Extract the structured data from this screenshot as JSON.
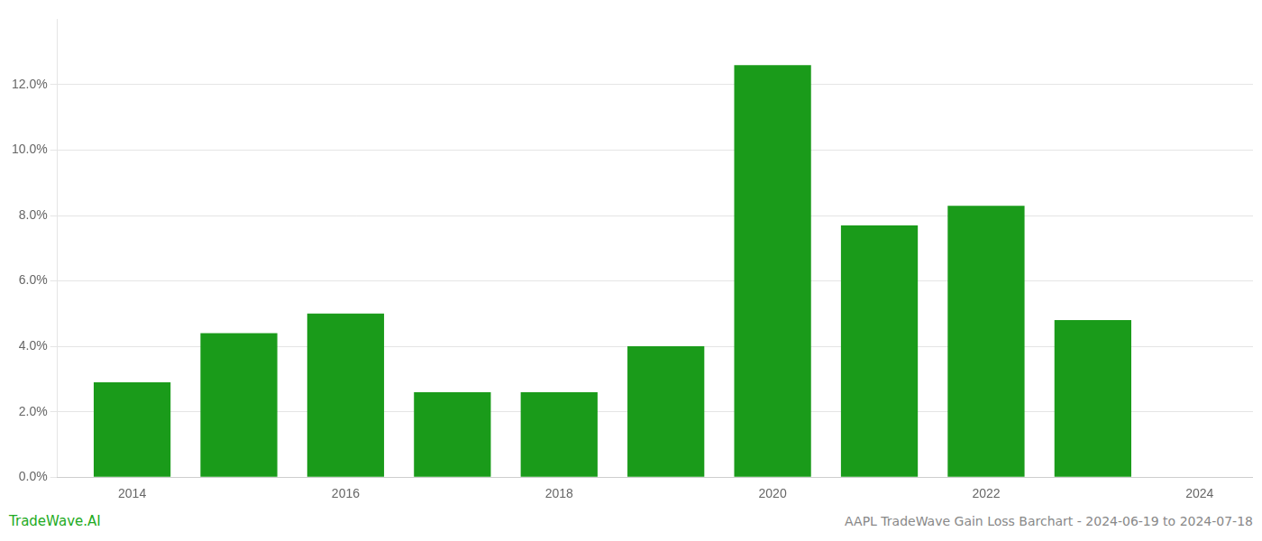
{
  "chart_data": {
    "type": "bar",
    "x": [
      2014,
      2015,
      2016,
      2017,
      2018,
      2019,
      2020,
      2021,
      2022,
      2023
    ],
    "values": [
      0.029,
      0.044,
      0.05,
      0.026,
      0.026,
      0.04,
      0.126,
      0.077,
      0.083,
      0.048
    ],
    "color": "#1a9b1a",
    "xlim": [
      2013.3,
      2024.5
    ],
    "xticks": [
      2014,
      2016,
      2018,
      2020,
      2022,
      2024
    ],
    "ylim": [
      0,
      0.14
    ],
    "yticks": [
      {
        "value": 0.0,
        "label": "0.0%"
      },
      {
        "value": 0.02,
        "label": "2.0%"
      },
      {
        "value": 0.04,
        "label": "4.0%"
      },
      {
        "value": 0.06,
        "label": "6.0%"
      },
      {
        "value": 0.08,
        "label": "8.0%"
      },
      {
        "value": 0.1,
        "label": "10.0%"
      },
      {
        "value": 0.12,
        "label": "12.0%"
      }
    ],
    "grid": "y",
    "annotations": [
      {
        "text": "TradeWave.AI",
        "color": "#22aa22"
      },
      {
        "text": "AAPL TradeWave Gain Loss Barchart - 2024-06-19 to 2024-07-18",
        "color": "#888888"
      }
    ]
  }
}
